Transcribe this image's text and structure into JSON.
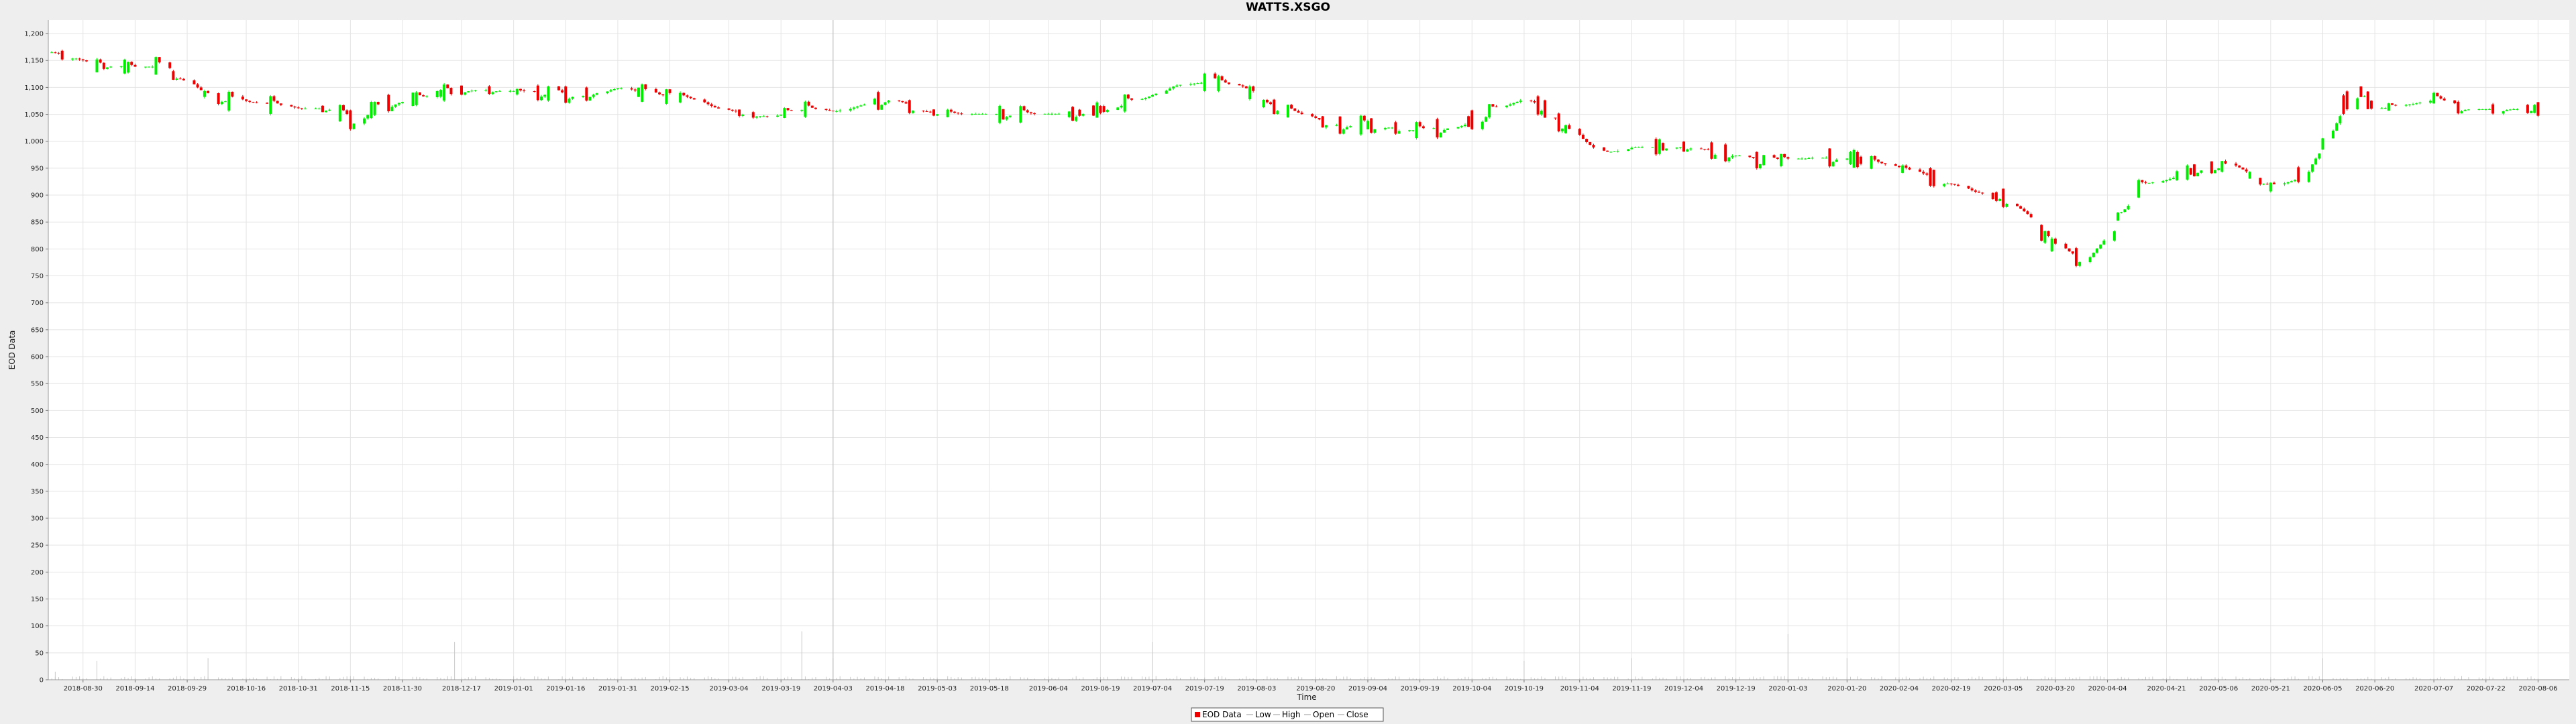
{
  "chart_data": {
    "type": "candlestick",
    "title": "WATTS.XSGO",
    "xlabel": "Time",
    "ylabel": "EOD Data",
    "ylim": [
      0,
      1225
    ],
    "yticks": [
      0,
      50,
      100,
      150,
      200,
      250,
      300,
      350,
      400,
      450,
      500,
      550,
      600,
      650,
      700,
      750,
      800,
      850,
      900,
      950,
      1000,
      1050,
      1100,
      1150,
      1200
    ],
    "ytick_labels": [
      "0",
      "50",
      "100",
      "150",
      "200",
      "250",
      "300",
      "350",
      "400",
      "450",
      "500",
      "550",
      "600",
      "650",
      "700",
      "750",
      "800",
      "850",
      "900",
      "950",
      "1,000",
      "1,050",
      "1,100",
      "1,150",
      "1,200"
    ],
    "x_range": [
      "2018-08-20",
      "2020-08-15"
    ],
    "xticks": [
      "2018-08-30",
      "2018-09-14",
      "2018-09-29",
      "2018-10-16",
      "2018-10-31",
      "2018-11-15",
      "2018-11-30",
      "2018-12-17",
      "2019-01-01",
      "2019-01-16",
      "2019-01-31",
      "2019-02-15",
      "2019-03-04",
      "2019-03-19",
      "2019-04-03",
      "2019-04-18",
      "2019-05-03",
      "2019-05-18",
      "2019-06-04",
      "2019-06-19",
      "2019-07-04",
      "2019-07-19",
      "2019-08-03",
      "2019-08-20",
      "2019-09-04",
      "2019-09-19",
      "2019-10-04",
      "2019-10-19",
      "2019-11-04",
      "2019-11-19",
      "2019-12-04",
      "2019-12-19",
      "2020-01-03",
      "2020-01-20",
      "2020-02-04",
      "2020-02-19",
      "2020-03-05",
      "2020-03-20",
      "2020-04-04",
      "2020-04-21",
      "2020-05-06",
      "2020-05-21",
      "2020-06-05",
      "2020-06-20",
      "2020-07-07",
      "2020-07-22",
      "2020-08-06"
    ],
    "legend": [
      "EOD Data",
      "Low",
      "High",
      "Open",
      "Close"
    ],
    "legend_position": "bottom-center",
    "grid": true,
    "crosshair_date": "2019-04-03",
    "colors": {
      "up": "#00ee00",
      "down": "#ee0000",
      "volume": "#c8c8c8",
      "grid": "#e4e4e4"
    },
    "ohlc_anchors": [
      [
        "2018-08-21",
        1165
      ],
      [
        "2018-08-27",
        1155
      ],
      [
        "2018-09-03",
        1140
      ],
      [
        "2018-09-10",
        1140
      ],
      [
        "2018-09-14",
        1135
      ],
      [
        "2018-09-20",
        1140
      ],
      [
        "2018-09-27",
        1115
      ],
      [
        "2018-10-03",
        1090
      ],
      [
        "2018-10-10",
        1075
      ],
      [
        "2018-10-20",
        1070
      ],
      [
        "2018-10-31",
        1060
      ],
      [
        "2018-11-10",
        1060
      ],
      [
        "2018-11-15",
        1040
      ],
      [
        "2018-11-25",
        1070
      ],
      [
        "2018-12-05",
        1080
      ],
      [
        "2018-12-15",
        1095
      ],
      [
        "2018-12-25",
        1095
      ],
      [
        "2019-01-08",
        1090
      ],
      [
        "2019-01-20",
        1085
      ],
      [
        "2019-01-31",
        1100
      ],
      [
        "2019-02-10",
        1085
      ],
      [
        "2019-02-20",
        1080
      ],
      [
        "2019-02-28",
        1060
      ],
      [
        "2019-03-10",
        1050
      ],
      [
        "2019-03-15",
        1045
      ],
      [
        "2019-03-25",
        1060
      ],
      [
        "2019-04-03",
        1055
      ],
      [
        "2019-04-12",
        1070
      ],
      [
        "2019-04-20",
        1080
      ],
      [
        "2019-04-28",
        1055
      ],
      [
        "2019-05-10",
        1050
      ],
      [
        "2019-05-25",
        1050
      ],
      [
        "2019-06-10",
        1050
      ],
      [
        "2019-06-20",
        1060
      ],
      [
        "2019-07-01",
        1080
      ],
      [
        "2019-07-10",
        1105
      ],
      [
        "2019-07-20",
        1110
      ],
      [
        "2019-07-30",
        1100
      ],
      [
        "2019-08-05",
        1070
      ],
      [
        "2019-08-15",
        1050
      ],
      [
        "2019-08-25",
        1030
      ],
      [
        "2019-09-04",
        1030
      ],
      [
        "2019-09-19",
        1020
      ],
      [
        "2019-10-01",
        1030
      ],
      [
        "2019-10-10",
        1060
      ],
      [
        "2019-10-19",
        1080
      ],
      [
        "2019-10-25",
        1060
      ],
      [
        "2019-11-02",
        1010
      ],
      [
        "2019-11-10",
        975
      ],
      [
        "2019-11-19",
        990
      ],
      [
        "2019-12-04",
        990
      ],
      [
        "2019-12-15",
        980
      ],
      [
        "2019-12-25",
        965
      ],
      [
        "2020-01-03",
        965
      ],
      [
        "2020-01-10",
        970
      ],
      [
        "2020-01-20",
        970
      ],
      [
        "2020-02-04",
        950
      ],
      [
        "2020-02-15",
        930
      ],
      [
        "2020-02-25",
        905
      ],
      [
        "2020-03-05",
        895
      ],
      [
        "2020-03-12",
        860
      ],
      [
        "2020-03-20",
        800
      ],
      [
        "2020-03-28",
        780
      ],
      [
        "2020-04-04",
        830
      ],
      [
        "2020-04-08",
        870
      ],
      [
        "2020-04-14",
        920
      ],
      [
        "2020-04-21",
        930
      ],
      [
        "2020-05-01",
        950
      ],
      [
        "2020-05-10",
        955
      ],
      [
        "2020-05-21",
        915
      ],
      [
        "2020-05-28",
        930
      ],
      [
        "2020-06-05",
        995
      ],
      [
        "2020-06-10",
        1060
      ],
      [
        "2020-06-15",
        1100
      ],
      [
        "2020-06-20",
        1060
      ],
      [
        "2020-07-01",
        1070
      ],
      [
        "2020-07-07",
        1080
      ],
      [
        "2020-07-15",
        1060
      ],
      [
        "2020-07-22",
        1060
      ],
      [
        "2020-08-06",
        1060
      ]
    ],
    "volume_spikes": [
      [
        "2018-08-22",
        15
      ],
      [
        "2018-09-03",
        35
      ],
      [
        "2018-10-05",
        40
      ],
      [
        "2018-12-15",
        70
      ],
      [
        "2019-03-25",
        90
      ],
      [
        "2019-04-03",
        40
      ],
      [
        "2019-07-04",
        70
      ],
      [
        "2019-10-19",
        35
      ],
      [
        "2019-11-19",
        40
      ],
      [
        "2020-01-03",
        85
      ],
      [
        "2020-01-20",
        40
      ],
      [
        "2020-06-05",
        40
      ]
    ]
  }
}
